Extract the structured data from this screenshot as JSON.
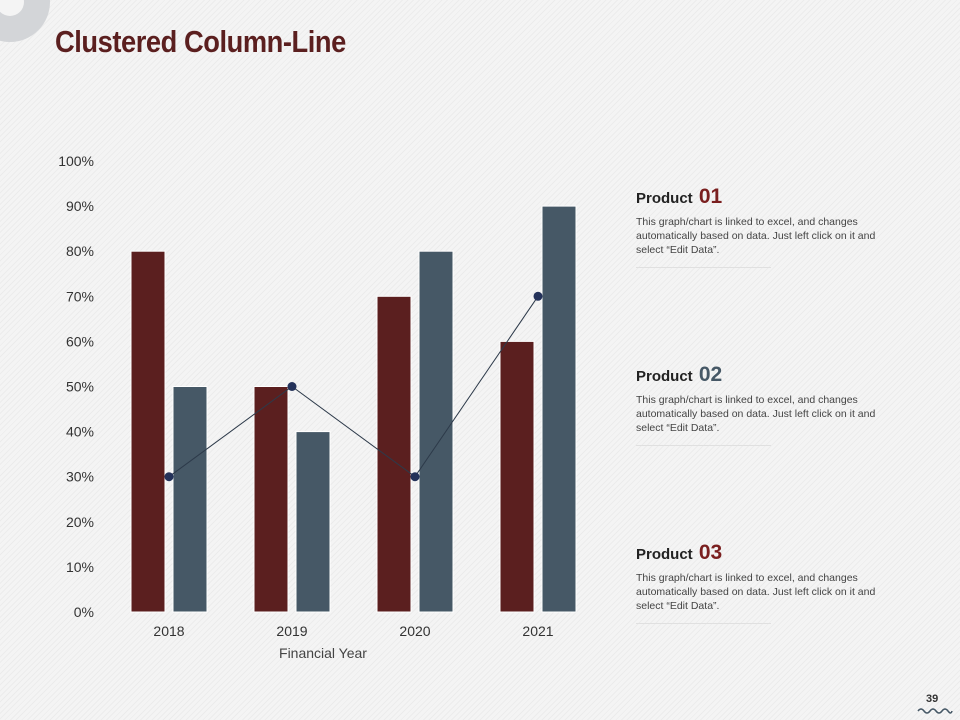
{
  "title": "Clustered Column-Line",
  "colors": {
    "series1": "#5b1f1f",
    "series2": "#465866",
    "line": "#2d3a4a",
    "num1": "#7a1f1f",
    "num2": "#465866",
    "num3": "#7a1f1f",
    "accent": "#5b1f1f"
  },
  "chart_data": {
    "type": "bar",
    "categories": [
      "2018",
      "2019",
      "2020",
      "2021"
    ],
    "series": [
      {
        "name": "Product 01",
        "kind": "bar",
        "values": [
          80,
          50,
          70,
          60
        ]
      },
      {
        "name": "Product 02",
        "kind": "bar",
        "values": [
          50,
          40,
          80,
          90
        ]
      },
      {
        "name": "Product 03",
        "kind": "line",
        "values": [
          30,
          50,
          30,
          70
        ]
      }
    ],
    "yticks": [
      "0%",
      "10%",
      "20%",
      "30%",
      "40%",
      "50%",
      "60%",
      "70%",
      "80%",
      "90%",
      "100%"
    ],
    "ylim": [
      0,
      100
    ],
    "xlabel": "Financial Year",
    "ylabel": ""
  },
  "products": [
    {
      "label": "Product",
      "number": "01",
      "description": "This graph/chart is linked to excel, and changes automatically based on data. Just left click on it and select “Edit Data”."
    },
    {
      "label": "Product",
      "number": "02",
      "description": "This graph/chart is linked to excel, and changes automatically based on data. Just left click on it and select “Edit Data”."
    },
    {
      "label": "Product",
      "number": "03",
      "description": "This graph/chart is linked to excel, and changes automatically based on data. Just left click on it and select “Edit Data”."
    }
  ],
  "page_number": "39",
  "icons": {
    "corner": "circle-decoration-icon",
    "footer": "wave-icon"
  }
}
